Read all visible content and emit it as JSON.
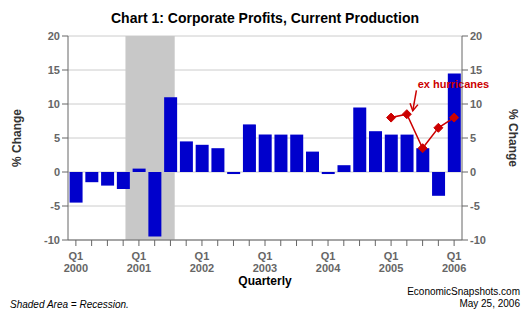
{
  "chart_data": {
    "type": "bar",
    "title": "Chart 1: Corporate Profits, Current Production",
    "x_label": "Quarterly",
    "y_label": "% Change",
    "y2_label": "% Change",
    "categories": [
      "Q1\n2000",
      null,
      null,
      null,
      "Q1\n2001",
      null,
      null,
      null,
      "Q1\n2002",
      null,
      null,
      null,
      "Q1\n2003",
      null,
      null,
      null,
      "Q1\n2004",
      null,
      null,
      null,
      "Q1\n2005",
      null,
      null,
      null,
      "Q1\n2006"
    ],
    "series": [
      {
        "type": "bar",
        "color": "#0000CC",
        "values": [
          -4.5,
          -1.5,
          -2.0,
          -2.5,
          0.5,
          -9.5,
          11.0,
          4.5,
          4.0,
          3.5,
          -0.3,
          7.0,
          5.5,
          5.5,
          5.5,
          3.0,
          -0.3,
          1.0,
          9.5,
          6.0,
          5.5,
          5.5,
          3.5,
          -3.5,
          14.5
        ]
      },
      {
        "type": "line",
        "color": "#CC0000",
        "marker": "diamond",
        "line_style": "solid",
        "values": [
          null,
          null,
          null,
          null,
          null,
          null,
          null,
          null,
          null,
          null,
          null,
          null,
          null,
          null,
          null,
          null,
          null,
          null,
          null,
          null,
          8.0,
          8.5,
          3.5,
          6.5,
          8.0
        ]
      }
    ],
    "ylim": [
      -10,
      20
    ],
    "yticks": [
      -10,
      -5,
      0,
      5,
      10,
      15,
      20
    ],
    "y2lim": [
      -10,
      20
    ],
    "y2ticks": [
      -10,
      -5,
      0,
      5,
      10,
      15,
      20
    ],
    "grid": true,
    "shaded_ranges": [
      {
        "x": [
          3.5,
          6.5
        ],
        "color": "#C8C8C8"
      }
    ],
    "annotations": [
      {
        "text": "ex hurricanes",
        "x": 21.3,
        "y": 13.0,
        "arrow_x": 21.0,
        "arrow_y": 9.0,
        "color": "#CC0000"
      }
    ],
    "footnotes": [
      "Shaded Area = Recession.",
      "EconomicSnapshots.com\nMay 25, 2006"
    ]
  }
}
